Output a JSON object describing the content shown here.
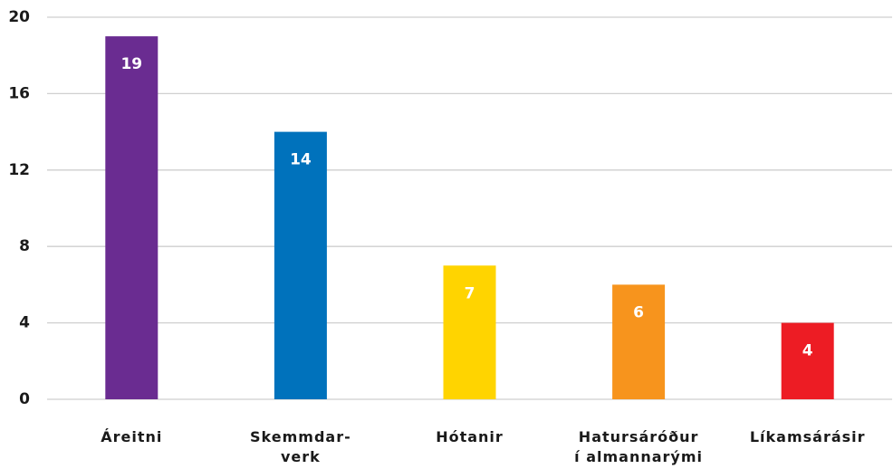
{
  "chart_data": {
    "type": "bar",
    "categories": [
      "Áreitni",
      "Skemmdar-\nverk",
      "Hótanir",
      "Hatursáróður\ní almannarými",
      "Líkamsárásir"
    ],
    "values": [
      19,
      14,
      7,
      6,
      4
    ],
    "colors": [
      "#6a2c91",
      "#0072bc",
      "#ffd400",
      "#f7941d",
      "#ed1c24"
    ],
    "ylim": [
      0,
      20
    ],
    "yticks": [
      0,
      4,
      8,
      12,
      16,
      20
    ],
    "grid": true
  }
}
